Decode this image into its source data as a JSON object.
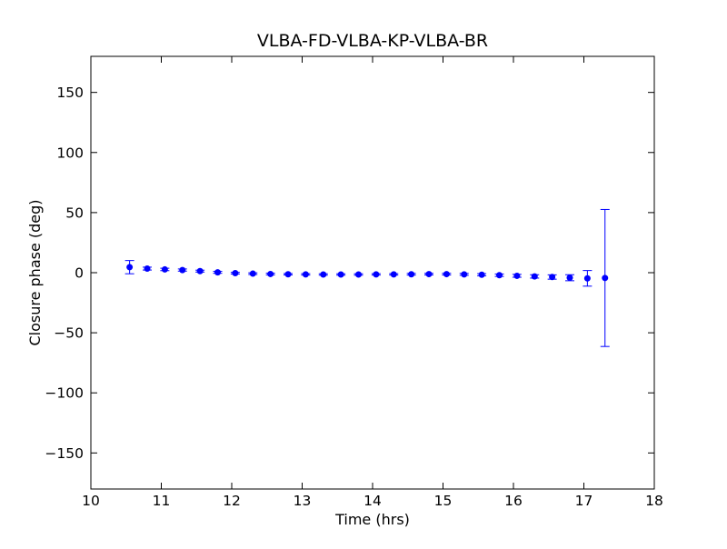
{
  "figure": {
    "background": "#ffffff",
    "frame_color": "#000000",
    "text_color": "#000000"
  },
  "chart_data": {
    "type": "scatter",
    "title": "VLBA-FD-VLBA-KP-VLBA-BR",
    "xlabel": "Time (hrs)",
    "ylabel": "Closure phase (deg)",
    "xlim": [
      10,
      18
    ],
    "ylim": [
      -180,
      180
    ],
    "xticks": [
      10,
      11,
      12,
      13,
      14,
      15,
      16,
      17,
      18
    ],
    "xtick_labels": [
      "10",
      "11",
      "12",
      "13",
      "14",
      "15",
      "16",
      "17",
      "18"
    ],
    "yticks": [
      -150,
      -100,
      -50,
      0,
      50,
      100,
      150
    ],
    "ytick_labels": [
      "−150",
      "−100",
      "−50",
      "0",
      "50",
      "100",
      "150"
    ],
    "grid": false,
    "legend": null,
    "marker_color": "#0000ff",
    "errorbar_color": "#0000ff",
    "marker_size": 7,
    "series": [
      {
        "name": "closure-phase",
        "x": [
          10.55,
          10.8,
          11.05,
          11.3,
          11.55,
          11.8,
          12.05,
          12.3,
          12.55,
          12.8,
          13.05,
          13.3,
          13.55,
          13.8,
          14.05,
          14.3,
          14.55,
          14.8,
          15.05,
          15.3,
          15.55,
          15.8,
          16.05,
          16.3,
          16.55,
          16.8,
          17.05,
          17.3
        ],
        "y": [
          4.6,
          3.4,
          2.7,
          2.2,
          1.3,
          0.3,
          -0.4,
          -0.8,
          -1.1,
          -1.3,
          -1.4,
          -1.5,
          -1.5,
          -1.5,
          -1.4,
          -1.4,
          -1.3,
          -1.2,
          -1.2,
          -1.4,
          -1.7,
          -2.1,
          -2.6,
          -3.1,
          -3.6,
          -4.2,
          -4.7,
          -4.4
        ],
        "yerr": [
          5.5,
          1.2,
          1.0,
          0.9,
          0.8,
          0.8,
          0.7,
          0.7,
          0.7,
          0.6,
          0.6,
          0.6,
          0.6,
          0.6,
          0.6,
          0.6,
          0.7,
          0.7,
          0.7,
          0.8,
          0.9,
          1.0,
          1.2,
          1.4,
          1.8,
          2.5,
          6.5,
          57
        ]
      }
    ]
  }
}
